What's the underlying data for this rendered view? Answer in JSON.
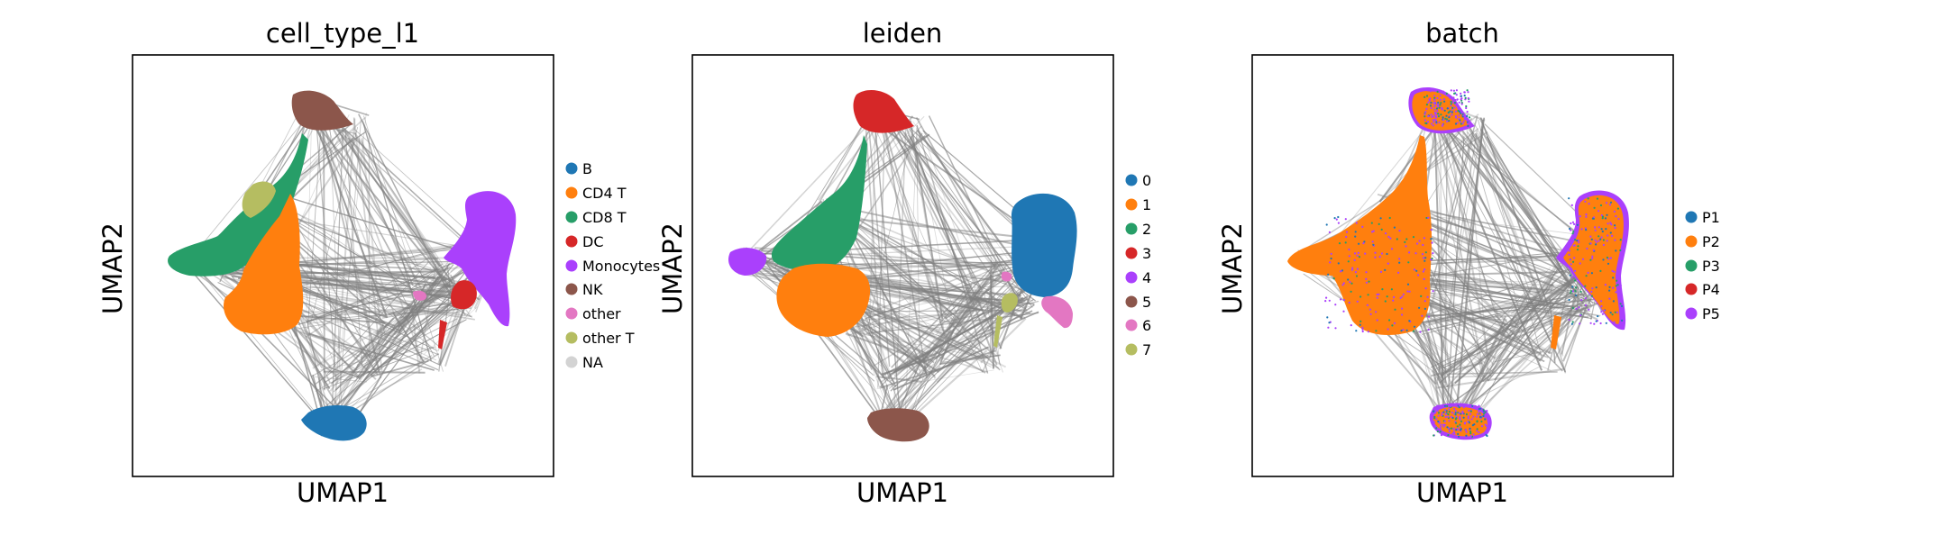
{
  "chart_data": [
    {
      "type": "scatter",
      "title": "cell_type_l1",
      "xlabel": "UMAP1",
      "ylabel": "UMAP2",
      "ticks": "none",
      "legend_position": "right",
      "edges": "graph edges (gray, PAGA-like)",
      "series": [
        {
          "name": "B",
          "color": "#1f77b4"
        },
        {
          "name": "CD4 T",
          "color": "#ff7f0e"
        },
        {
          "name": "CD8 T",
          "color": "#279e68"
        },
        {
          "name": "DC",
          "color": "#d62728"
        },
        {
          "name": "Monocytes",
          "color": "#aa40fc"
        },
        {
          "name": "NK",
          "color": "#8c564b"
        },
        {
          "name": "other",
          "color": "#e377c2"
        },
        {
          "name": "other T",
          "color": "#b5bd61"
        },
        {
          "name": "NA",
          "color": "#d3d3d3"
        }
      ]
    },
    {
      "type": "scatter",
      "title": "leiden",
      "xlabel": "UMAP1",
      "ylabel": "UMAP2",
      "ticks": "none",
      "legend_position": "right",
      "edges": "graph edges (gray, PAGA-like)",
      "series": [
        {
          "name": "0",
          "color": "#1f77b4"
        },
        {
          "name": "1",
          "color": "#ff7f0e"
        },
        {
          "name": "2",
          "color": "#279e68"
        },
        {
          "name": "3",
          "color": "#d62728"
        },
        {
          "name": "4",
          "color": "#aa40fc"
        },
        {
          "name": "5",
          "color": "#8c564b"
        },
        {
          "name": "6",
          "color": "#e377c2"
        },
        {
          "name": "7",
          "color": "#b5bd61"
        }
      ]
    },
    {
      "type": "scatter",
      "title": "batch",
      "xlabel": "UMAP1",
      "ylabel": "UMAP2",
      "ticks": "none",
      "legend_position": "right",
      "edges": "graph edges (gray, PAGA-like)",
      "series": [
        {
          "name": "P1",
          "color": "#1f77b4"
        },
        {
          "name": "P2",
          "color": "#ff7f0e"
        },
        {
          "name": "P3",
          "color": "#279e68"
        },
        {
          "name": "P4",
          "color": "#d62728"
        },
        {
          "name": "P5",
          "color": "#aa40fc"
        }
      ]
    }
  ]
}
